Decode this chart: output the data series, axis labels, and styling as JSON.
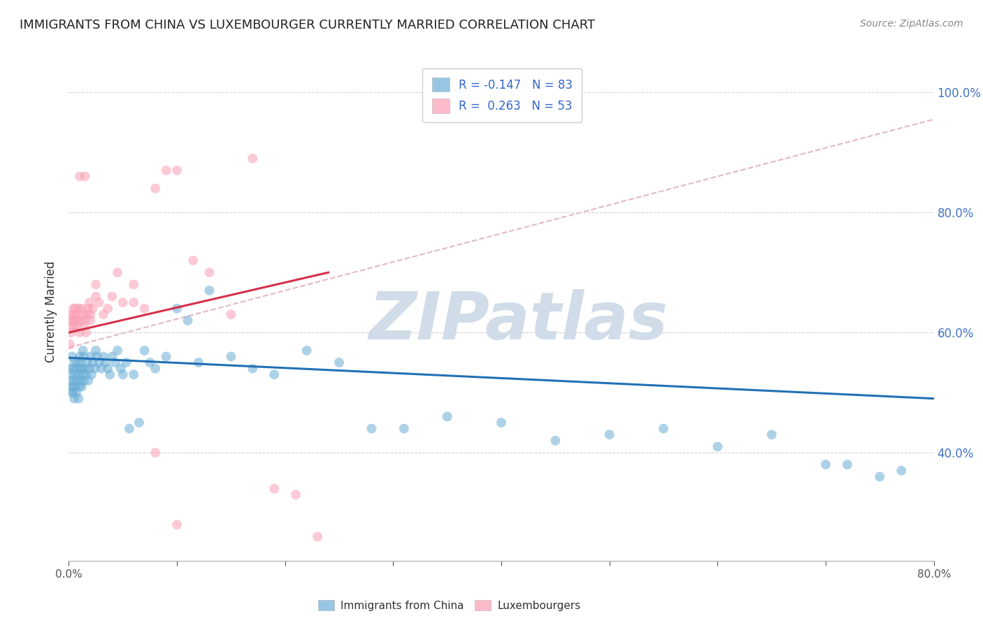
{
  "title": "IMMIGRANTS FROM CHINA VS LUXEMBOURGER CURRENTLY MARRIED CORRELATION CHART",
  "source": "Source: ZipAtlas.com",
  "ylabel": "Currently Married",
  "ytick_values": [
    1.0,
    0.8,
    0.6,
    0.4
  ],
  "xlim": [
    0.0,
    0.8
  ],
  "ylim": [
    0.22,
    1.05
  ],
  "legend_blue_label": "R = -0.147   N = 83",
  "legend_pink_label": "R =  0.263   N = 53",
  "legend_china_label": "Immigrants from China",
  "legend_lux_label": "Luxembourgers",
  "blue_color": "#6baed6",
  "pink_color": "#fa9fb5",
  "trend_blue_color": "#2171b5",
  "trend_pink_color": "#d6304a",
  "dashed_line_color": "#e0b8c8",
  "watermark_color": "#d0dce8",
  "watermark_text": "ZIPatlas",
  "blue_scatter_x": [
    0.001,
    0.002,
    0.002,
    0.003,
    0.003,
    0.003,
    0.004,
    0.004,
    0.004,
    0.005,
    0.005,
    0.005,
    0.006,
    0.006,
    0.007,
    0.007,
    0.008,
    0.008,
    0.009,
    0.009,
    0.01,
    0.01,
    0.01,
    0.011,
    0.011,
    0.012,
    0.012,
    0.013,
    0.013,
    0.014,
    0.014,
    0.015,
    0.016,
    0.017,
    0.018,
    0.019,
    0.02,
    0.021,
    0.022,
    0.024,
    0.025,
    0.026,
    0.028,
    0.03,
    0.032,
    0.034,
    0.036,
    0.038,
    0.04,
    0.043,
    0.045,
    0.048,
    0.05,
    0.053,
    0.056,
    0.06,
    0.065,
    0.07,
    0.075,
    0.08,
    0.09,
    0.1,
    0.11,
    0.12,
    0.13,
    0.15,
    0.17,
    0.19,
    0.22,
    0.25,
    0.28,
    0.31,
    0.35,
    0.4,
    0.45,
    0.5,
    0.55,
    0.6,
    0.65,
    0.7,
    0.72,
    0.75,
    0.77
  ],
  "blue_scatter_y": [
    0.54,
    0.52,
    0.51,
    0.5,
    0.53,
    0.56,
    0.51,
    0.54,
    0.5,
    0.49,
    0.52,
    0.55,
    0.51,
    0.53,
    0.5,
    0.54,
    0.52,
    0.55,
    0.49,
    0.53,
    0.51,
    0.54,
    0.56,
    0.52,
    0.55,
    0.51,
    0.54,
    0.53,
    0.57,
    0.52,
    0.56,
    0.54,
    0.53,
    0.55,
    0.52,
    0.54,
    0.56,
    0.53,
    0.55,
    0.54,
    0.57,
    0.56,
    0.55,
    0.54,
    0.56,
    0.55,
    0.54,
    0.53,
    0.56,
    0.55,
    0.57,
    0.54,
    0.53,
    0.55,
    0.44,
    0.53,
    0.45,
    0.57,
    0.55,
    0.54,
    0.56,
    0.64,
    0.62,
    0.55,
    0.67,
    0.56,
    0.54,
    0.53,
    0.57,
    0.55,
    0.44,
    0.44,
    0.46,
    0.45,
    0.42,
    0.43,
    0.44,
    0.41,
    0.43,
    0.38,
    0.38,
    0.36,
    0.37
  ],
  "pink_scatter_x": [
    0.001,
    0.002,
    0.002,
    0.003,
    0.003,
    0.004,
    0.004,
    0.005,
    0.005,
    0.006,
    0.006,
    0.007,
    0.007,
    0.008,
    0.009,
    0.01,
    0.011,
    0.012,
    0.013,
    0.014,
    0.015,
    0.016,
    0.017,
    0.018,
    0.019,
    0.02,
    0.022,
    0.025,
    0.028,
    0.032,
    0.036,
    0.04,
    0.045,
    0.05,
    0.06,
    0.07,
    0.08,
    0.09,
    0.1,
    0.115,
    0.13,
    0.15,
    0.17,
    0.19,
    0.21,
    0.23,
    0.01,
    0.015,
    0.02,
    0.025,
    0.06,
    0.08,
    0.1
  ],
  "pink_scatter_y": [
    0.58,
    0.6,
    0.62,
    0.61,
    0.63,
    0.62,
    0.64,
    0.63,
    0.61,
    0.62,
    0.64,
    0.63,
    0.61,
    0.62,
    0.64,
    0.6,
    0.62,
    0.64,
    0.63,
    0.61,
    0.62,
    0.6,
    0.63,
    0.64,
    0.65,
    0.62,
    0.64,
    0.68,
    0.65,
    0.63,
    0.64,
    0.66,
    0.7,
    0.65,
    0.68,
    0.64,
    0.84,
    0.87,
    0.87,
    0.72,
    0.7,
    0.63,
    0.89,
    0.34,
    0.33,
    0.26,
    0.86,
    0.86,
    0.63,
    0.66,
    0.65,
    0.4,
    0.28
  ],
  "blue_trend_x": [
    0.0,
    0.8
  ],
  "blue_trend_y": [
    0.558,
    0.49
  ],
  "pink_trend_x": [
    0.0,
    0.24
  ],
  "pink_trend_y": [
    0.6,
    0.7
  ],
  "dashed_trend_x": [
    0.0,
    0.8
  ],
  "dashed_trend_y": [
    0.575,
    0.955
  ],
  "grid_color": "#d3d3d3",
  "background_color": "#ffffff",
  "title_fontsize": 12,
  "axis_label_fontsize": 11,
  "tick_fontsize": 10,
  "source_fontsize": 10
}
